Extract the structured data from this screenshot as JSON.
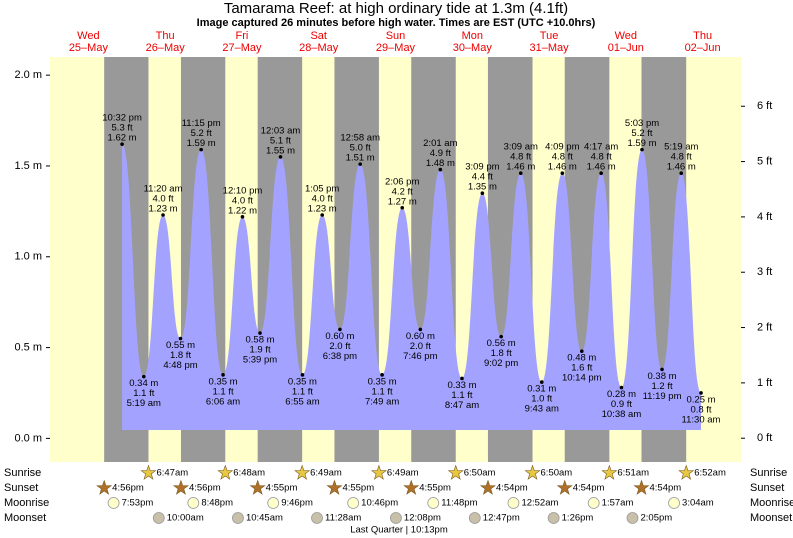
{
  "header": {
    "title": "Tamarama Reef: at high  ordinary tide at 1.3m (4.1ft)",
    "subtitle": "Image captured 26 minutes before high water. Times are EST (UTC +10.0hrs)"
  },
  "chart_data": {
    "type": "area",
    "ylim": [
      -0.13,
      2.1
    ],
    "yticks": [
      {
        "value": 0,
        "label": "0.0 m"
      },
      {
        "value": 0.5,
        "label": "0.5 m"
      },
      {
        "value": 1,
        "label": "1.0 m"
      },
      {
        "value": 1.5,
        "label": "1.5 m"
      },
      {
        "value": 2,
        "label": "2.0 m"
      }
    ],
    "y2lim": [
      -0.43,
      6.89
    ],
    "y2ticks": [
      {
        "value": 0,
        "label": "0 ft"
      },
      {
        "value": 1,
        "label": "1 ft"
      },
      {
        "value": 2,
        "label": "2 ft"
      },
      {
        "value": 3,
        "label": "3 ft"
      },
      {
        "value": 4,
        "label": "4 ft"
      },
      {
        "value": 5,
        "label": "5 ft"
      },
      {
        "value": 6,
        "label": "6 ft"
      }
    ],
    "row_labels": [
      "Sunrise",
      "Sunset",
      "Moonrise",
      "Moonset"
    ],
    "moon_phase": "Last Quarter | 10:13pm",
    "days": [
      {
        "dow": "Wed",
        "date": "25–May",
        "sunrise": null,
        "sunset": "4:56pm",
        "moonrise": "7:53pm",
        "moonset": null,
        "tides": [
          {
            "time": "10:32 pm",
            "feet": "5.3 ft",
            "height": 1.62,
            "height_label": "1.62 m"
          }
        ]
      },
      {
        "dow": "Thu",
        "date": "26–May",
        "sunrise": "6:47am",
        "sunset": "4:56pm",
        "moonrise": "8:48pm",
        "moonset": "10:00am",
        "tides": [
          {
            "time": "5:19 am",
            "feet": "1.1 ft",
            "height": 0.34,
            "height_label": "0.34 m"
          },
          {
            "time": "11:20 am",
            "feet": "4.0 ft",
            "height": 1.23,
            "height_label": "1.23 m"
          },
          {
            "time": "4:48 pm",
            "feet": "1.8 ft",
            "height": 0.55,
            "height_label": "0.55 m"
          },
          {
            "time": "11:15 pm",
            "feet": "5.2 ft",
            "height": 1.59,
            "height_label": "1.59 m"
          }
        ]
      },
      {
        "dow": "Fri",
        "date": "27–May",
        "sunrise": "6:48am",
        "sunset": "4:55pm",
        "moonrise": "9:46pm",
        "moonset": "10:45am",
        "tides": [
          {
            "time": "6:06 am",
            "feet": "1.1 ft",
            "height": 0.35,
            "height_label": "0.35 m"
          },
          {
            "time": "12:10 pm",
            "feet": "4.0 ft",
            "height": 1.22,
            "height_label": "1.22 m"
          },
          {
            "time": "5:39 pm",
            "feet": "1.9 ft",
            "height": 0.58,
            "height_label": "0.58 m"
          }
        ]
      },
      {
        "dow": "Sat",
        "date": "28–May",
        "sunrise": "6:49am",
        "sunset": "4:55pm",
        "moonrise": "10:46pm",
        "moonset": "11:28am",
        "tides": [
          {
            "time": "12:03 am",
            "feet": "5.1 ft",
            "height": 1.55,
            "height_label": "1.55 m"
          },
          {
            "time": "6:55 am",
            "feet": "1.1 ft",
            "height": 0.35,
            "height_label": "0.35 m"
          },
          {
            "time": "1:05 pm",
            "feet": "4.0 ft",
            "height": 1.23,
            "height_label": "1.23 m"
          },
          {
            "time": "6:38 pm",
            "feet": "2.0 ft",
            "height": 0.6,
            "height_label": "0.60 m"
          }
        ]
      },
      {
        "dow": "Sun",
        "date": "29–May",
        "sunrise": "6:49am",
        "sunset": "4:55pm",
        "moonrise": "11:48pm",
        "moonset": "12:08pm",
        "tides": [
          {
            "time": "12:58 am",
            "feet": "5.0 ft",
            "height": 1.51,
            "height_label": "1.51 m"
          },
          {
            "time": "7:49 am",
            "feet": "1.1 ft",
            "height": 0.35,
            "height_label": "0.35 m"
          },
          {
            "time": "2:06 pm",
            "feet": "4.2 ft",
            "height": 1.27,
            "height_label": "1.27 m"
          },
          {
            "time": "7:46 pm",
            "feet": "2.0 ft",
            "height": 0.6,
            "height_label": "0.60 m"
          }
        ]
      },
      {
        "dow": "Mon",
        "date": "30–May",
        "sunrise": "6:50am",
        "sunset": "4:54pm",
        "moonrise": null,
        "moonset": "12:47pm",
        "tides": [
          {
            "time": "2:01 am",
            "feet": "4.9 ft",
            "height": 1.48,
            "height_label": "1.48 m"
          },
          {
            "time": "8:47 am",
            "feet": "1.1 ft",
            "height": 0.33,
            "height_label": "0.33 m"
          },
          {
            "time": "3:09 pm",
            "feet": "4.4 ft",
            "height": 1.35,
            "height_label": "1.35 m"
          },
          {
            "time": "9:02 pm",
            "feet": "1.8 ft",
            "height": 0.56,
            "height_label": "0.56 m"
          }
        ]
      },
      {
        "dow": "Tue",
        "date": "31–May",
        "sunrise": "6:50am",
        "sunset": "4:54pm",
        "moonrise": "12:52am",
        "moonset": "1:26pm",
        "tides": [
          {
            "time": "3:09 am",
            "feet": "4.8 ft",
            "height": 1.46,
            "height_label": "1.46 m"
          },
          {
            "time": "9:43 am",
            "feet": "1.0 ft",
            "height": 0.31,
            "height_label": "0.31 m"
          },
          {
            "time": "4:09 pm",
            "feet": "4.8 ft",
            "height": 1.46,
            "height_label": "1.46 m"
          },
          {
            "time": "10:14 pm",
            "feet": "1.6 ft",
            "height": 0.48,
            "height_label": "0.48 m"
          }
        ]
      },
      {
        "dow": "Wed",
        "date": "01–Jun",
        "sunrise": "6:51am",
        "sunset": "4:54pm",
        "moonrise": "1:57am",
        "moonset": "2:05pm",
        "tides": [
          {
            "time": "4:17 am",
            "feet": "4.8 ft",
            "height": 1.46,
            "height_label": "1.46 m"
          },
          {
            "time": "10:38 am",
            "feet": "0.9 ft",
            "height": 0.28,
            "height_label": "0.28 m"
          },
          {
            "time": "5:03 pm",
            "feet": "5.2 ft",
            "height": 1.59,
            "height_label": "1.59 m"
          },
          {
            "time": "11:19 pm",
            "feet": "1.2 ft",
            "height": 0.38,
            "height_label": "0.38 m"
          }
        ]
      },
      {
        "dow": "Thu",
        "date": "02–Jun",
        "sunrise": "6:52am",
        "sunset": null,
        "moonrise": "3:04am",
        "moonset": null,
        "tides": [
          {
            "time": "5:19 am",
            "feet": "4.8 ft",
            "height": 1.46,
            "height_label": "1.46 m"
          },
          {
            "time": "11:30 am",
            "feet": "0.8 ft",
            "height": 0.25,
            "height_label": "0.25 m"
          }
        ]
      }
    ]
  }
}
